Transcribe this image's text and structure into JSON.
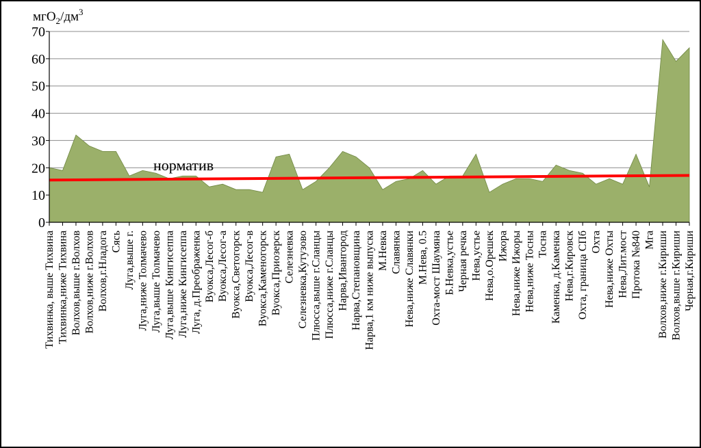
{
  "chart_data": {
    "type": "area",
    "ylabel": "мгO₂/дм³",
    "ylabel_parts": {
      "base": "мгO",
      "sub": "2",
      "mid": "/дм",
      "sup": "3"
    },
    "ylim": [
      0,
      70
    ],
    "yticks": [
      0,
      10,
      20,
      30,
      40,
      50,
      60,
      70
    ],
    "grid": true,
    "colors": {
      "area": "#9bb06a",
      "area_stroke": "#6f8742",
      "norm_line": "#ff0000",
      "grid": "#8c8c8c"
    },
    "categories": [
      "Тихвинка, выше Тихвина",
      "Тихвинка,ниже Тихвина",
      "Волхов,выше г.Волхов",
      "Волхов,ниже г.Волхов",
      "Волхов,г.Нладога",
      "Сясь",
      "Луга,выше г.",
      "Луга,ниже Толмачево",
      "Луга,выше Толмачево",
      "Луга,выше Кингисеппа",
      "Луга,ниже Кингисеппа",
      "Луга, д.Преображенка",
      "Вуокса,Лесог-б",
      "Вуокса,Лесог-а",
      "Вуокса,Светогорск",
      "Вуокса,Лесог-в",
      "Вуокса,Каменогорск",
      "Вуокса,Приозерск",
      "Селезневка",
      "Селезневка,Кутузово",
      "Плюсса,выше г.Сланцы",
      "Плюсса,ниже г.Сланцы",
      "Нарва,Ивангород",
      "Нарва,Степановщина",
      "Нарва,1 км ниже выпуска",
      "М.Невка",
      "Славянка",
      "Нева,ниже Славянки",
      "М.Нева, 0.5",
      "Охта-мост Шаумяна",
      "Б.Невка,устье",
      "Черная речка",
      "Нева,устье",
      "Нева,о.Орешек",
      "Ижора",
      "Нева,ниже Ижоры",
      "Нева,ниже Тосны",
      "Тосна",
      "Каменка, д.Каменка",
      "Нева,г.Кировск",
      "Охта, граница СПб",
      "Охта",
      "Нева,ниже Охты",
      "Нева,Лит.мост",
      "Протока №840",
      "Мга",
      "Волхов,ниже г.Кириши",
      "Волхов,выше г.Кириши",
      "Черная,г.Кириши"
    ],
    "values": [
      20,
      19,
      32,
      28,
      26,
      26,
      17,
      19,
      18,
      16,
      17,
      17,
      13,
      14,
      12,
      12,
      11,
      24,
      25,
      12,
      15,
      20,
      26,
      24,
      20,
      12,
      15,
      16,
      19,
      14,
      17,
      17,
      25,
      11,
      14,
      16,
      16,
      15,
      21,
      19,
      18,
      14,
      16,
      14,
      25,
      13,
      67,
      59,
      64
    ],
    "series": [
      {
        "name": "",
        "values": "see values"
      }
    ],
    "norm_line": {
      "label": "норматив",
      "start": 15.5,
      "end": 17.2
    }
  }
}
